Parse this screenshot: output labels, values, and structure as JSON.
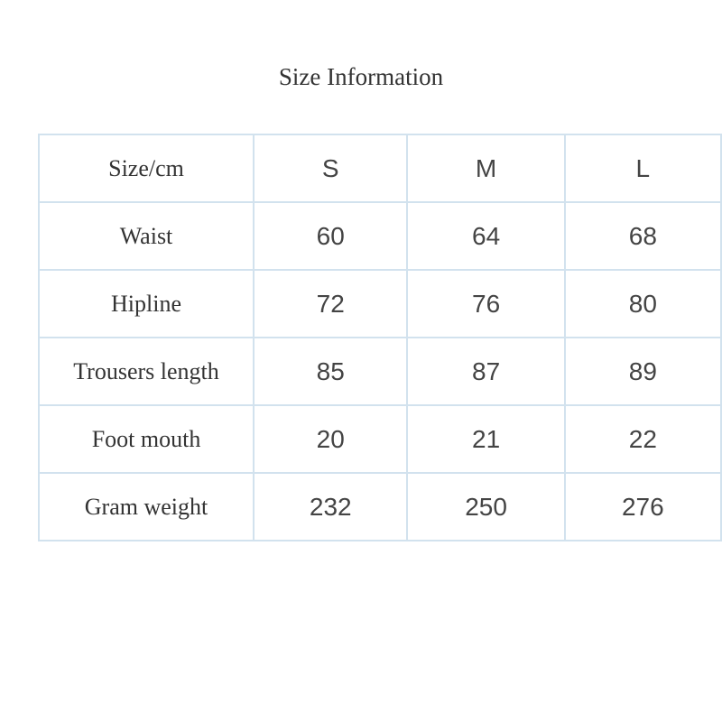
{
  "title": "Size Information",
  "table": {
    "header": {
      "label": "Size/cm",
      "sizes": [
        "S",
        "M",
        "L"
      ]
    },
    "rows": [
      {
        "label": "Waist",
        "values": [
          "60",
          "64",
          "68"
        ]
      },
      {
        "label": "Hipline",
        "values": [
          "72",
          "76",
          "80"
        ]
      },
      {
        "label": "Trousers length",
        "values": [
          "85",
          "87",
          "89"
        ]
      },
      {
        "label": "Foot mouth",
        "values": [
          "20",
          "21",
          "22"
        ]
      },
      {
        "label": "Gram weight",
        "values": [
          "232",
          "250",
          "276"
        ]
      }
    ]
  },
  "colors": {
    "border": "#d2e2ee",
    "text": "#333333"
  }
}
